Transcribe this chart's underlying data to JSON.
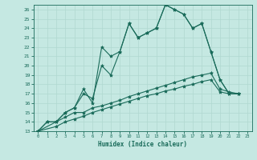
{
  "xlabel": "Humidex (Indice chaleur)",
  "bg_color": "#c5e8e2",
  "line_color": "#1a6b5a",
  "grid_color": "#b0d8d0",
  "xlim": [
    -0.5,
    23.5
  ],
  "ylim": [
    13,
    26.5
  ],
  "xticks": [
    0,
    1,
    2,
    3,
    4,
    5,
    6,
    7,
    8,
    9,
    10,
    11,
    12,
    13,
    14,
    15,
    16,
    17,
    18,
    19,
    20,
    21,
    22,
    23
  ],
  "yticks": [
    13,
    14,
    15,
    16,
    17,
    18,
    19,
    20,
    21,
    22,
    23,
    24,
    25,
    26
  ],
  "line1_x": [
    0,
    1,
    2,
    3,
    4,
    5,
    6,
    7,
    8,
    9,
    10,
    11,
    12,
    13,
    14,
    15,
    16,
    17,
    18,
    19,
    20,
    21,
    22
  ],
  "line1_y": [
    13,
    14,
    14,
    15,
    15.5,
    17.5,
    16,
    22,
    21,
    21.5,
    24.5,
    23,
    23.5,
    24,
    26.5,
    26,
    25.5,
    24,
    24.5,
    21.5,
    18.5,
    17,
    17
  ],
  "line2_x": [
    0,
    1,
    2,
    3,
    4,
    5,
    6,
    7,
    8,
    9,
    10,
    11,
    12,
    13,
    14,
    15,
    16,
    17,
    18,
    19,
    20,
    21,
    22
  ],
  "line2_y": [
    13,
    14,
    14,
    15,
    15.5,
    17,
    16.5,
    20,
    19,
    21.5,
    24.5,
    23,
    23.5,
    24,
    26.5,
    26,
    25.5,
    24,
    24.5,
    21.5,
    18.5,
    17,
    17
  ],
  "line3_x": [
    0,
    2,
    3,
    4,
    5,
    6,
    7,
    8,
    9,
    10,
    11,
    12,
    13,
    14,
    15,
    16,
    17,
    18,
    19,
    20,
    21,
    22
  ],
  "line3_y": [
    13,
    14,
    14.5,
    15,
    15,
    15.5,
    15.7,
    16,
    16.3,
    16.7,
    17.0,
    17.3,
    17.6,
    17.9,
    18.2,
    18.5,
    18.8,
    19.0,
    19.2,
    17.5,
    17.2,
    17
  ],
  "line4_x": [
    0,
    2,
    3,
    4,
    5,
    6,
    7,
    8,
    9,
    10,
    11,
    12,
    13,
    14,
    15,
    16,
    17,
    18,
    19,
    20,
    21,
    22
  ],
  "line4_y": [
    13,
    13.5,
    14,
    14.3,
    14.6,
    15.0,
    15.3,
    15.6,
    15.9,
    16.2,
    16.5,
    16.8,
    17.0,
    17.3,
    17.5,
    17.8,
    18.0,
    18.3,
    18.5,
    17.2,
    17.0,
    17
  ]
}
